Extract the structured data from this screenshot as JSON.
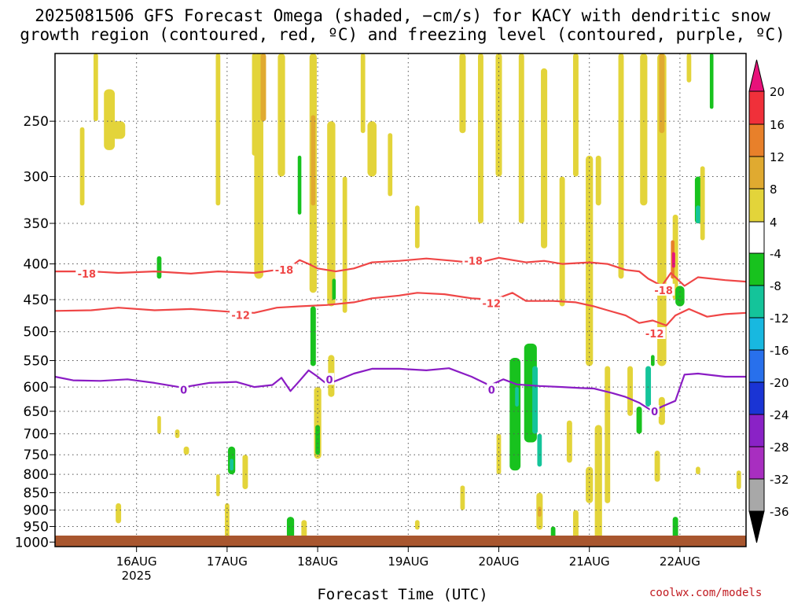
{
  "chart_data": {
    "type": "heatmap",
    "title_line1": "2025081506 GFS Forecast Omega (shaded, −cm/s) for KACY with dendritic snow",
    "title_line2": "growth region (contoured, red, ºC) and freezing level (contoured, purple, ºC)",
    "xlabel": "Forecast Time (UTC)",
    "credit": "coolwx.com/models",
    "x_ticks": [
      {
        "label": "16AUG",
        "sub": "2025",
        "day": 16
      },
      {
        "label": "17AUG",
        "sub": "",
        "day": 17
      },
      {
        "label": "18AUG",
        "sub": "",
        "day": 18
      },
      {
        "label": "19AUG",
        "sub": "",
        "day": 19
      },
      {
        "label": "20AUG",
        "sub": "",
        "day": 20
      },
      {
        "label": "21AUG",
        "sub": "",
        "day": 21
      },
      {
        "label": "22AUG",
        "sub": "",
        "day": 22
      }
    ],
    "x_range_days": [
      15.1,
      22.73
    ],
    "y_ticks": [
      250,
      300,
      350,
      400,
      450,
      500,
      550,
      600,
      650,
      700,
      750,
      800,
      850,
      900,
      950,
      1000
    ],
    "y_range_hPa": [
      200,
      1015
    ],
    "grid": true,
    "colorbar": {
      "labels": [
        "20",
        "16",
        "12",
        "8",
        "4",
        "-4",
        "-8",
        "-12",
        "-16",
        "-20",
        "-24",
        "-28",
        "-32",
        "-36"
      ],
      "colors": [
        "#e8127a",
        "#f0303a",
        "#e8802a",
        "#e0aa30",
        "#e3d43a",
        "#ffffff",
        "#18c21e",
        "#14c49a",
        "#18b8e0",
        "#2870ec",
        "#1a34d4",
        "#8a22c6",
        "#a82ec0",
        "#a8a8a8",
        "#000000"
      ]
    },
    "shading_regions": [
      {
        "x": 15.55,
        "y0": 200,
        "y1": 250,
        "w": 0.05,
        "cat": 4
      },
      {
        "x": 15.7,
        "y0": 225,
        "y1": 275,
        "w": 0.12,
        "cat": 4
      },
      {
        "x": 15.8,
        "y0": 250,
        "y1": 265,
        "w": 0.15,
        "cat": 4
      },
      {
        "x": 15.4,
        "y0": 255,
        "y1": 330,
        "w": 0.05,
        "cat": 4
      },
      {
        "x": 16.25,
        "y0": 390,
        "y1": 420,
        "w": 0.05,
        "cat": -8
      },
      {
        "x": 16.9,
        "y0": 200,
        "y1": 330,
        "w": 0.05,
        "cat": 4
      },
      {
        "x": 17.3,
        "y0": 200,
        "y1": 280,
        "w": 0.05,
        "cat": 4
      },
      {
        "x": 17.35,
        "y0": 200,
        "y1": 420,
        "w": 0.1,
        "cat": 4
      },
      {
        "x": 17.4,
        "y0": 200,
        "y1": 250,
        "w": 0.06,
        "cat": 8
      },
      {
        "x": 17.6,
        "y0": 200,
        "y1": 300,
        "w": 0.08,
        "cat": 4
      },
      {
        "x": 17.8,
        "y0": 280,
        "y1": 340,
        "w": 0.04,
        "cat": -8
      },
      {
        "x": 17.95,
        "y0": 200,
        "y1": 440,
        "w": 0.08,
        "cat": 4
      },
      {
        "x": 17.95,
        "y0": 245,
        "y1": 330,
        "w": 0.05,
        "cat": 8
      },
      {
        "x": 18.15,
        "y0": 250,
        "y1": 460,
        "w": 0.09,
        "cat": 4
      },
      {
        "x": 18.18,
        "y0": 420,
        "y1": 450,
        "w": 0.04,
        "cat": -8
      },
      {
        "x": 18.3,
        "y0": 300,
        "y1": 470,
        "w": 0.05,
        "cat": 4
      },
      {
        "x": 18.5,
        "y0": 200,
        "y1": 260,
        "w": 0.05,
        "cat": 4
      },
      {
        "x": 18.6,
        "y0": 250,
        "y1": 300,
        "w": 0.1,
        "cat": 4
      },
      {
        "x": 18.8,
        "y0": 260,
        "y1": 320,
        "w": 0.05,
        "cat": 4
      },
      {
        "x": 17.95,
        "y0": 460,
        "y1": 560,
        "w": 0.06,
        "cat": -8
      },
      {
        "x": 18.0,
        "y0": 600,
        "y1": 760,
        "w": 0.08,
        "cat": 4
      },
      {
        "x": 18.0,
        "y0": 680,
        "y1": 750,
        "w": 0.05,
        "cat": -8
      },
      {
        "x": 18.15,
        "y0": 540,
        "y1": 620,
        "w": 0.07,
        "cat": 4
      },
      {
        "x": 19.1,
        "y0": 330,
        "y1": 380,
        "w": 0.05,
        "cat": 4
      },
      {
        "x": 19.6,
        "y0": 200,
        "y1": 260,
        "w": 0.07,
        "cat": 4
      },
      {
        "x": 19.8,
        "y0": 200,
        "y1": 350,
        "w": 0.06,
        "cat": 4
      },
      {
        "x": 20.0,
        "y0": 200,
        "y1": 300,
        "w": 0.07,
        "cat": 4
      },
      {
        "x": 20.25,
        "y0": 200,
        "y1": 350,
        "w": 0.06,
        "cat": 4
      },
      {
        "x": 20.5,
        "y0": 210,
        "y1": 380,
        "w": 0.07,
        "cat": 4
      },
      {
        "x": 20.7,
        "y0": 300,
        "y1": 460,
        "w": 0.06,
        "cat": 4
      },
      {
        "x": 20.85,
        "y0": 200,
        "y1": 300,
        "w": 0.06,
        "cat": 4
      },
      {
        "x": 21.0,
        "y0": 280,
        "y1": 560,
        "w": 0.08,
        "cat": 4
      },
      {
        "x": 21.1,
        "y0": 280,
        "y1": 330,
        "w": 0.06,
        "cat": 4
      },
      {
        "x": 21.35,
        "y0": 200,
        "y1": 420,
        "w": 0.06,
        "cat": 4
      },
      {
        "x": 21.6,
        "y0": 200,
        "y1": 330,
        "w": 0.08,
        "cat": 4
      },
      {
        "x": 21.8,
        "y0": 200,
        "y1": 560,
        "w": 0.1,
        "cat": 4
      },
      {
        "x": 21.8,
        "y0": 200,
        "y1": 260,
        "w": 0.06,
        "cat": 8
      },
      {
        "x": 21.95,
        "y0": 340,
        "y1": 450,
        "w": 0.06,
        "cat": 4
      },
      {
        "x": 21.92,
        "y0": 370,
        "y1": 420,
        "w": 0.04,
        "cat": 12
      },
      {
        "x": 21.93,
        "y0": 385,
        "y1": 405,
        "w": 0.03,
        "cat": 20
      },
      {
        "x": 22.2,
        "y0": 300,
        "y1": 350,
        "w": 0.07,
        "cat": -8
      },
      {
        "x": 22.2,
        "y0": 330,
        "y1": 350,
        "w": 0.05,
        "cat": -12
      },
      {
        "x": 22.35,
        "y0": 200,
        "y1": 240,
        "w": 0.04,
        "cat": -8
      },
      {
        "x": 22.0,
        "y0": 430,
        "y1": 460,
        "w": 0.1,
        "cat": -8
      },
      {
        "x": 22.1,
        "y0": 200,
        "y1": 220,
        "w": 0.05,
        "cat": 4
      },
      {
        "x": 22.25,
        "y0": 290,
        "y1": 370,
        "w": 0.05,
        "cat": 4
      },
      {
        "x": 20.18,
        "y0": 545,
        "y1": 790,
        "w": 0.12,
        "cat": -8
      },
      {
        "x": 20.35,
        "y0": 520,
        "y1": 720,
        "w": 0.14,
        "cat": -8
      },
      {
        "x": 20.4,
        "y0": 560,
        "y1": 700,
        "w": 0.06,
        "cat": -12
      },
      {
        "x": 20.2,
        "y0": 600,
        "y1": 640,
        "w": 0.04,
        "cat": -12
      },
      {
        "x": 20.45,
        "y0": 700,
        "y1": 780,
        "w": 0.05,
        "cat": -12
      },
      {
        "x": 21.65,
        "y0": 560,
        "y1": 640,
        "w": 0.06,
        "cat": -12
      },
      {
        "x": 21.7,
        "y0": 540,
        "y1": 560,
        "w": 0.04,
        "cat": -8
      },
      {
        "x": 21.55,
        "y0": 640,
        "y1": 700,
        "w": 0.06,
        "cat": -8
      },
      {
        "x": 21.95,
        "y0": 920,
        "y1": 990,
        "w": 0.06,
        "cat": -8
      },
      {
        "x": 17.05,
        "y0": 730,
        "y1": 800,
        "w": 0.08,
        "cat": -8
      },
      {
        "x": 17.05,
        "y0": 760,
        "y1": 790,
        "w": 0.04,
        "cat": -12
      },
      {
        "x": 17.2,
        "y0": 750,
        "y1": 840,
        "w": 0.06,
        "cat": 4
      },
      {
        "x": 17.0,
        "y0": 880,
        "y1": 990,
        "w": 0.05,
        "cat": 4
      },
      {
        "x": 16.9,
        "y0": 800,
        "y1": 860,
        "w": 0.04,
        "cat": 4
      },
      {
        "x": 16.55,
        "y0": 730,
        "y1": 750,
        "w": 0.06,
        "cat": 4
      },
      {
        "x": 16.45,
        "y0": 690,
        "y1": 710,
        "w": 0.05,
        "cat": 4
      },
      {
        "x": 16.25,
        "y0": 660,
        "y1": 700,
        "w": 0.04,
        "cat": 4
      },
      {
        "x": 15.8,
        "y0": 880,
        "y1": 940,
        "w": 0.06,
        "cat": 4
      },
      {
        "x": 17.7,
        "y0": 920,
        "y1": 990,
        "w": 0.08,
        "cat": -8
      },
      {
        "x": 17.85,
        "y0": 930,
        "y1": 990,
        "w": 0.06,
        "cat": 4
      },
      {
        "x": 19.1,
        "y0": 930,
        "y1": 960,
        "w": 0.05,
        "cat": 4
      },
      {
        "x": 19.6,
        "y0": 830,
        "y1": 900,
        "w": 0.05,
        "cat": 4
      },
      {
        "x": 20.45,
        "y0": 850,
        "y1": 960,
        "w": 0.07,
        "cat": 4
      },
      {
        "x": 20.45,
        "y0": 890,
        "y1": 920,
        "w": 0.04,
        "cat": 8
      },
      {
        "x": 20.6,
        "y0": 950,
        "y1": 990,
        "w": 0.05,
        "cat": -8
      },
      {
        "x": 20.85,
        "y0": 900,
        "y1": 990,
        "w": 0.06,
        "cat": 4
      },
      {
        "x": 21.1,
        "y0": 680,
        "y1": 990,
        "w": 0.08,
        "cat": 4
      },
      {
        "x": 21.2,
        "y0": 560,
        "y1": 880,
        "w": 0.06,
        "cat": 4
      },
      {
        "x": 21.0,
        "y0": 780,
        "y1": 880,
        "w": 0.08,
        "cat": 4
      },
      {
        "x": 21.45,
        "y0": 560,
        "y1": 660,
        "w": 0.06,
        "cat": 4
      },
      {
        "x": 21.8,
        "y0": 620,
        "y1": 680,
        "w": 0.07,
        "cat": 4
      },
      {
        "x": 21.75,
        "y0": 740,
        "y1": 820,
        "w": 0.06,
        "cat": 4
      },
      {
        "x": 22.2,
        "y0": 780,
        "y1": 800,
        "w": 0.05,
        "cat": 4
      },
      {
        "x": 22.65,
        "y0": 790,
        "y1": 840,
        "w": 0.05,
        "cat": 4
      },
      {
        "x": 20.78,
        "y0": 670,
        "y1": 770,
        "w": 0.06,
        "cat": 4
      },
      {
        "x": 20.0,
        "y0": 700,
        "y1": 800,
        "w": 0.05,
        "cat": 4
      }
    ],
    "contour_labels": [
      {
        "text": "-18",
        "x": 15.45,
        "p": 413,
        "series": "dgz"
      },
      {
        "text": "-18",
        "x": 17.63,
        "p": 408,
        "series": "dgz"
      },
      {
        "text": "-18",
        "x": 19.72,
        "p": 396,
        "series": "dgz"
      },
      {
        "text": "-18",
        "x": 21.82,
        "p": 436,
        "series": "dgz"
      },
      {
        "text": "-12",
        "x": 17.15,
        "p": 473,
        "series": "dgz"
      },
      {
        "text": "-12",
        "x": 19.92,
        "p": 455,
        "series": "dgz"
      },
      {
        "text": "-12",
        "x": 21.72,
        "p": 503,
        "series": "dgz"
      },
      {
        "text": "0",
        "x": 16.52,
        "p": 605,
        "series": "freezing"
      },
      {
        "text": "0",
        "x": 18.13,
        "p": 585,
        "series": "freezing"
      },
      {
        "text": "0",
        "x": 19.92,
        "p": 605,
        "series": "freezing"
      },
      {
        "text": "0",
        "x": 21.72,
        "p": 650,
        "series": "freezing"
      }
    ],
    "series": [
      {
        "name": "-18",
        "color": "#ef4646",
        "points": [
          [
            15.1,
            410
          ],
          [
            15.5,
            410
          ],
          [
            15.8,
            412
          ],
          [
            16.2,
            410
          ],
          [
            16.6,
            413
          ],
          [
            16.9,
            410
          ],
          [
            17.3,
            412
          ],
          [
            17.55,
            408
          ],
          [
            17.7,
            404
          ],
          [
            17.8,
            395
          ],
          [
            17.9,
            400
          ],
          [
            18.0,
            406
          ],
          [
            18.2,
            410
          ],
          [
            18.4,
            406
          ],
          [
            18.6,
            398
          ],
          [
            18.9,
            396
          ],
          [
            19.2,
            393
          ],
          [
            19.5,
            396
          ],
          [
            19.75,
            399
          ],
          [
            20.0,
            392
          ],
          [
            20.3,
            398
          ],
          [
            20.5,
            396
          ],
          [
            20.7,
            400
          ],
          [
            21.0,
            398
          ],
          [
            21.2,
            400
          ],
          [
            21.4,
            408
          ],
          [
            21.55,
            410
          ],
          [
            21.65,
            420
          ],
          [
            21.8,
            430
          ],
          [
            21.9,
            412
          ],
          [
            22.05,
            430
          ],
          [
            22.2,
            418
          ],
          [
            22.5,
            422
          ],
          [
            22.73,
            424
          ]
        ]
      },
      {
        "name": "-12",
        "color": "#ef4646",
        "points": [
          [
            15.1,
            467
          ],
          [
            15.5,
            466
          ],
          [
            15.8,
            462
          ],
          [
            16.2,
            466
          ],
          [
            16.6,
            464
          ],
          [
            17.0,
            468
          ],
          [
            17.3,
            470
          ],
          [
            17.55,
            462
          ],
          [
            17.8,
            460
          ],
          [
            18.1,
            458
          ],
          [
            18.4,
            454
          ],
          [
            18.6,
            448
          ],
          [
            18.9,
            444
          ],
          [
            19.1,
            440
          ],
          [
            19.4,
            442
          ],
          [
            19.7,
            448
          ],
          [
            19.95,
            450
          ],
          [
            20.15,
            440
          ],
          [
            20.3,
            452
          ],
          [
            20.6,
            452
          ],
          [
            20.85,
            454
          ],
          [
            21.05,
            460
          ],
          [
            21.2,
            466
          ],
          [
            21.4,
            474
          ],
          [
            21.55,
            486
          ],
          [
            21.7,
            482
          ],
          [
            21.85,
            490
          ],
          [
            21.95,
            474
          ],
          [
            22.1,
            464
          ],
          [
            22.3,
            476
          ],
          [
            22.5,
            472
          ],
          [
            22.73,
            470
          ]
        ]
      },
      {
        "name": "0",
        "color": "#8a1cc4",
        "points": [
          [
            15.1,
            580
          ],
          [
            15.3,
            587
          ],
          [
            15.6,
            588
          ],
          [
            15.9,
            585
          ],
          [
            16.2,
            592
          ],
          [
            16.5,
            601
          ],
          [
            16.8,
            592
          ],
          [
            17.1,
            590
          ],
          [
            17.3,
            600
          ],
          [
            17.5,
            596
          ],
          [
            17.6,
            582
          ],
          [
            17.7,
            608
          ],
          [
            17.8,
            588
          ],
          [
            17.9,
            568
          ],
          [
            18.0,
            580
          ],
          [
            18.1,
            594
          ],
          [
            18.2,
            588
          ],
          [
            18.4,
            574
          ],
          [
            18.6,
            565
          ],
          [
            18.9,
            565
          ],
          [
            19.2,
            568
          ],
          [
            19.45,
            564
          ],
          [
            19.7,
            580
          ],
          [
            19.9,
            597
          ],
          [
            20.05,
            585
          ],
          [
            20.2,
            595
          ],
          [
            20.45,
            598
          ],
          [
            20.7,
            600
          ],
          [
            20.9,
            602
          ],
          [
            21.05,
            603
          ],
          [
            21.25,
            612
          ],
          [
            21.4,
            620
          ],
          [
            21.55,
            632
          ],
          [
            21.7,
            650
          ],
          [
            21.8,
            640
          ],
          [
            21.95,
            628
          ],
          [
            22.05,
            576
          ],
          [
            22.2,
            574
          ],
          [
            22.5,
            580
          ],
          [
            22.73,
            580
          ]
        ]
      }
    ]
  }
}
